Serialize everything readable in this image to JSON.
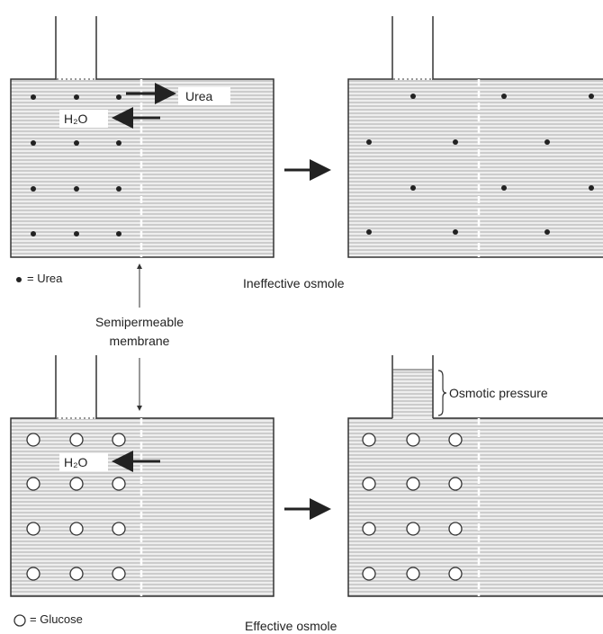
{
  "labels": {
    "urea_flow": "Urea",
    "water_top": "H₂O",
    "water_bottom": "H₂O",
    "osmotic_pressure": "Osmotic pressure",
    "membrane_line1": "Semipermeable",
    "membrane_line2": "membrane"
  },
  "legend": {
    "urea": "= Urea",
    "glucose": "= Glucose"
  },
  "captions": {
    "ineffective": "Ineffective osmole",
    "effective": "Effective osmole"
  }
}
